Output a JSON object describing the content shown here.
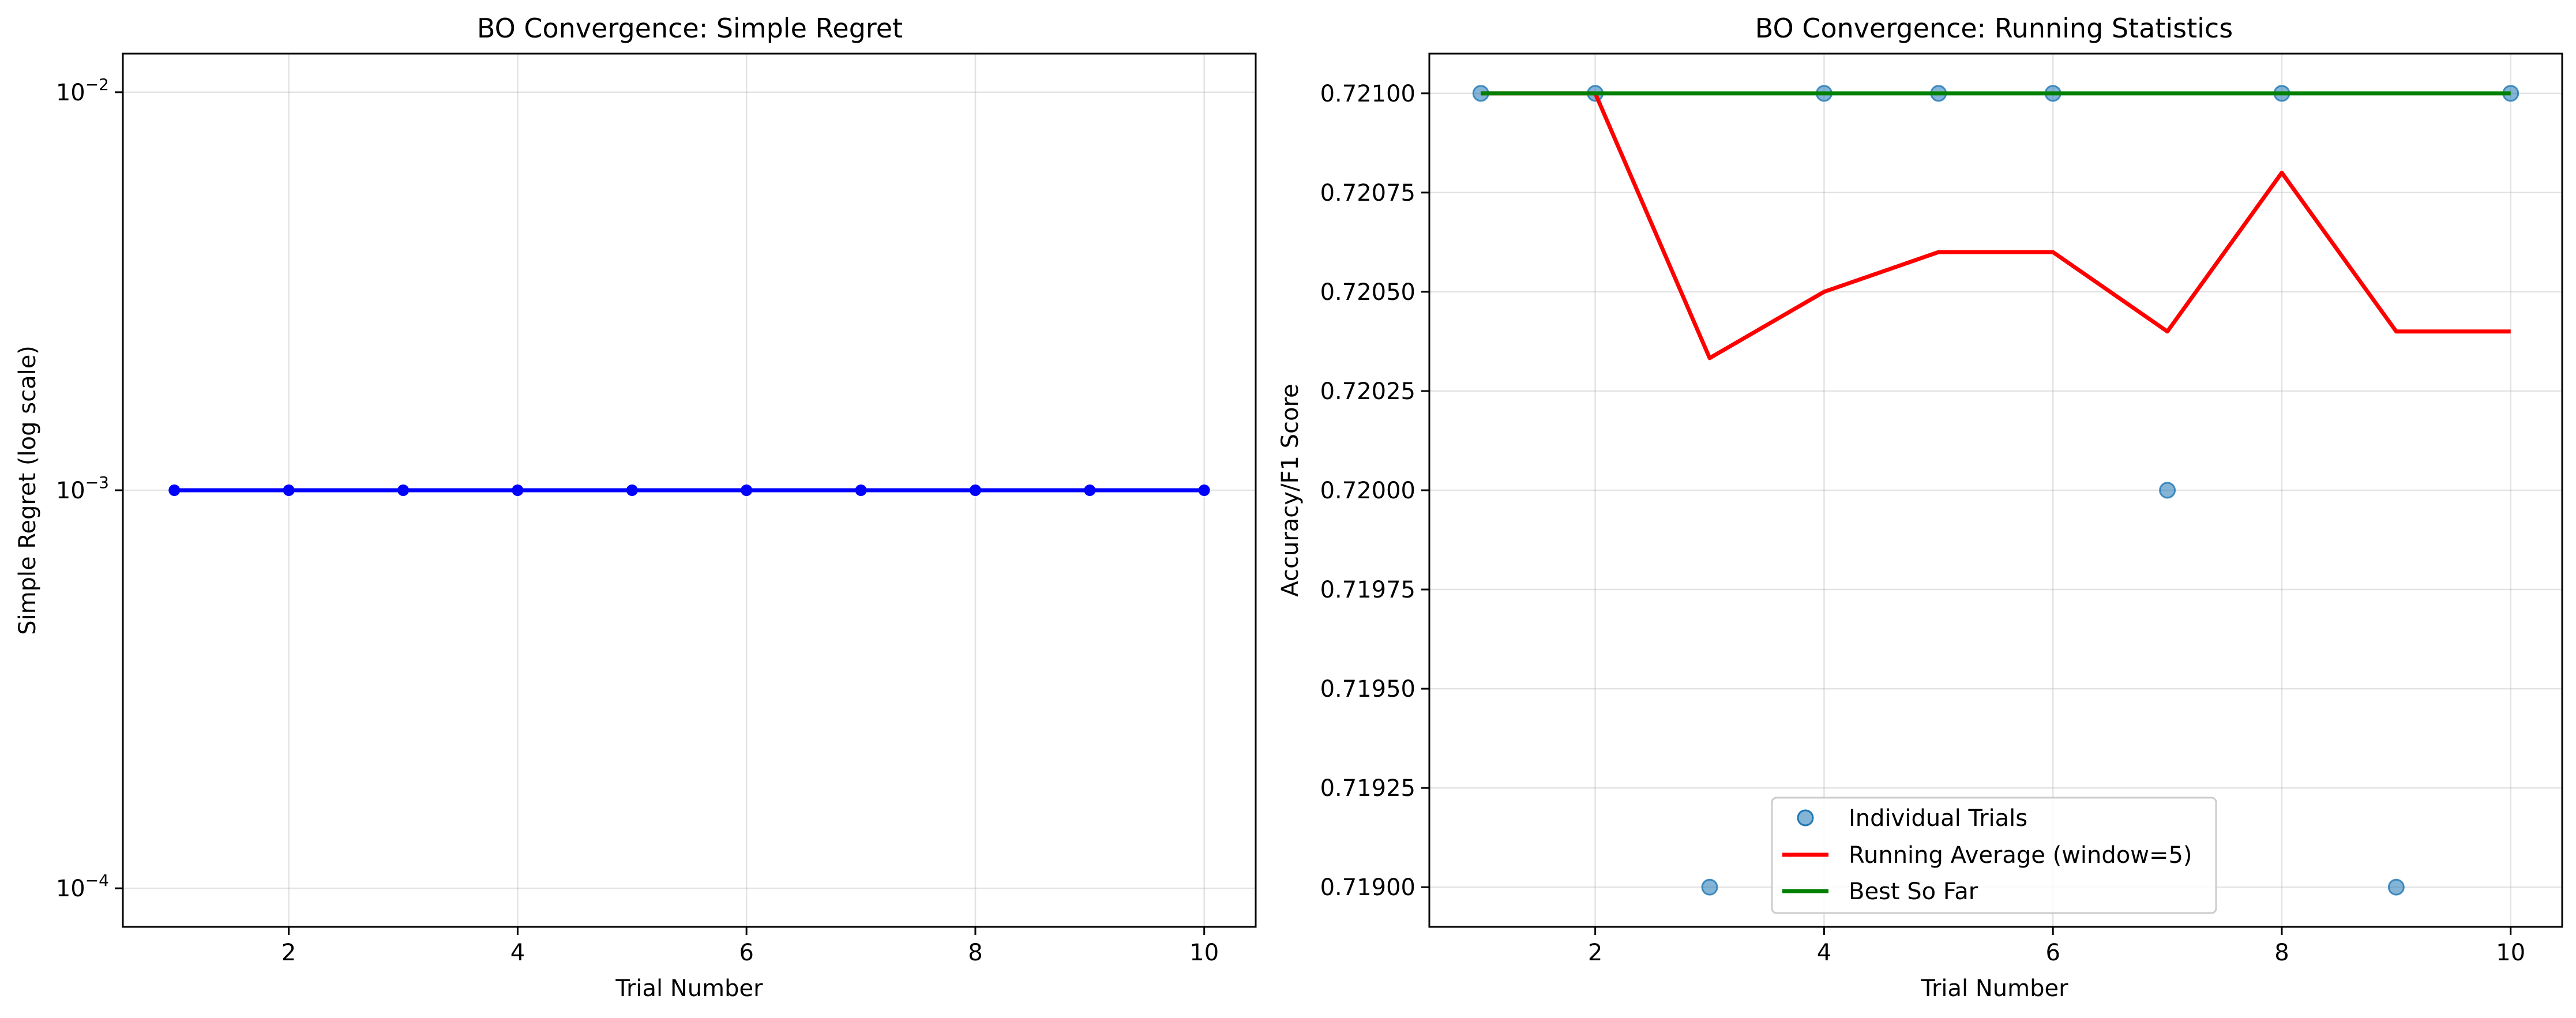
{
  "chart_data": [
    {
      "type": "line",
      "title": "BO Convergence: Simple Regret",
      "xlabel": "Trial Number",
      "ylabel": "Simple Regret (log scale)",
      "yscale": "log",
      "x": [
        1,
        2,
        3,
        4,
        5,
        6,
        7,
        8,
        9,
        10
      ],
      "xticks": [
        2,
        4,
        6,
        8,
        10
      ],
      "xlim": [
        0.55,
        10.45
      ],
      "yticks": [
        {
          "base": "10",
          "exp": "−2",
          "value": 0.01
        },
        {
          "base": "10",
          "exp": "−3",
          "value": 0.001
        },
        {
          "base": "10",
          "exp": "−4",
          "value": 0.0001
        }
      ],
      "ylim": [
        8e-05,
        0.0125
      ],
      "grid": true,
      "series": [
        {
          "values": [
            0.001,
            0.001,
            0.001,
            0.001,
            0.001,
            0.001,
            0.001,
            0.001,
            0.001,
            0.001
          ],
          "color": "#0000ff",
          "marker": "circle"
        }
      ]
    },
    {
      "type": "line",
      "title": "BO Convergence: Running Statistics",
      "xlabel": "Trial Number",
      "ylabel": "Accuracy/F1 Score",
      "x": [
        1,
        2,
        3,
        4,
        5,
        6,
        7,
        8,
        9,
        10
      ],
      "xticks": [
        2,
        4,
        6,
        8,
        10
      ],
      "xlim": [
        0.55,
        10.45
      ],
      "yticks": [
        "0.71900",
        "0.71925",
        "0.71950",
        "0.71975",
        "0.72000",
        "0.72025",
        "0.72050",
        "0.72075",
        "0.72100"
      ],
      "ylim": [
        0.7189,
        0.7211
      ],
      "grid": true,
      "legend_position": "lower-center",
      "series": [
        {
          "name": "Individual Trials",
          "style": "scatter",
          "color": "#1f77b4",
          "values": [
            0.721,
            0.721,
            0.719,
            0.721,
            0.721,
            0.721,
            0.72,
            0.721,
            0.719,
            0.721
          ]
        },
        {
          "name": "Running Average (window=5)",
          "style": "line",
          "color": "#ff0000",
          "values": [
            0.721,
            0.721,
            0.720333,
            0.7205,
            0.7206,
            0.7206,
            0.7204,
            0.7208,
            0.7204,
            0.7204
          ]
        },
        {
          "name": "Best So Far",
          "style": "line",
          "color": "#008000",
          "values": [
            0.721,
            0.721,
            0.721,
            0.721,
            0.721,
            0.721,
            0.721,
            0.721,
            0.721,
            0.721
          ]
        }
      ]
    }
  ]
}
